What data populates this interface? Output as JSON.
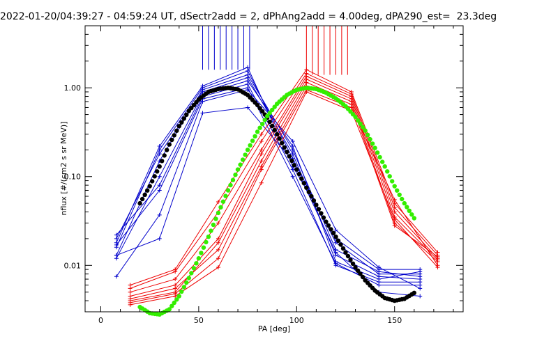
{
  "chart_data": {
    "type": "line",
    "title": "2022-01-20/04:39:27 - 04:59:24 UT, dSectr2add = 2, dPhAng2add = 4.00deg, dPA290_est=  23.3deg",
    "xlabel": "PA [deg]",
    "ylabel": "nflux [#/(cm2 s sr MeV)]",
    "xlim": [
      -8,
      185
    ],
    "ylim": [
      0.003,
      5.0
    ],
    "yscale": "log",
    "grid": false,
    "x_ticks": [
      0,
      50,
      100,
      150
    ],
    "x_tick_labels": [
      "0",
      "50",
      "100",
      "150"
    ],
    "y_ticks": [
      0.01,
      0.1,
      1.0
    ],
    "y_tick_labels": [
      "0.01",
      "0.10",
      "1.00"
    ],
    "colors": {
      "blue": "#0000cc",
      "red": "#ee0000",
      "black": "#000000",
      "green": "#33ee00"
    },
    "blue_series": [
      {
        "x": [
          8,
          30,
          52,
          75,
          98,
          120,
          142,
          163
        ],
        "y": [
          0.018,
          0.22,
          1.05,
          1.7,
          0.13,
          0.02,
          0.009,
          0.009
        ]
      },
      {
        "x": [
          8,
          30,
          52,
          75,
          98,
          120,
          142,
          163
        ],
        "y": [
          0.016,
          0.2,
          1.0,
          1.55,
          0.16,
          0.018,
          0.008,
          0.008
        ]
      },
      {
        "x": [
          8,
          30,
          52,
          75,
          98,
          120,
          142,
          163
        ],
        "y": [
          0.013,
          0.15,
          0.95,
          1.4,
          0.2,
          0.015,
          0.0085,
          0.0075
        ]
      },
      {
        "x": [
          8,
          30,
          52,
          75,
          98,
          120,
          142,
          163
        ],
        "y": [
          0.02,
          0.18,
          0.9,
          1.3,
          0.18,
          0.013,
          0.0075,
          0.007
        ]
      },
      {
        "x": [
          8,
          30,
          52,
          75,
          98,
          120,
          142,
          163
        ],
        "y": [
          0.012,
          0.1,
          0.85,
          1.2,
          0.22,
          0.011,
          0.007,
          0.0085
        ]
      },
      {
        "x": [
          8,
          30,
          52,
          75,
          98,
          120,
          142,
          163
        ],
        "y": [
          0.022,
          0.08,
          0.8,
          1.1,
          0.12,
          0.01,
          0.0065,
          0.0065
        ]
      },
      {
        "x": [
          8,
          30,
          52,
          75,
          98,
          120,
          142,
          163
        ],
        "y": [
          0.017,
          0.07,
          0.75,
          1.0,
          0.1,
          0.0105,
          0.006,
          0.006
        ]
      },
      {
        "x": [
          8,
          30,
          52,
          75,
          98,
          120,
          142,
          163
        ],
        "y": [
          0.0075,
          0.037,
          0.7,
          0.95,
          0.25,
          0.025,
          0.0095,
          0.0055
        ]
      },
      {
        "x": [
          8,
          30,
          52,
          75,
          98,
          120,
          142,
          163
        ],
        "y": [
          0.013,
          0.02,
          0.52,
          0.6,
          0.15,
          0.014,
          0.005,
          0.0045
        ]
      }
    ],
    "blue_spikes_x": [
      52,
      55,
      58,
      61,
      64,
      67,
      70,
      73,
      76
    ],
    "red_series": [
      {
        "x": [
          15,
          38,
          60,
          82,
          105,
          128,
          150,
          172
        ],
        "y": [
          0.006,
          0.009,
          0.052,
          0.3,
          1.6,
          0.9,
          0.05,
          0.014
        ]
      },
      {
        "x": [
          15,
          38,
          60,
          82,
          105,
          128,
          150,
          172
        ],
        "y": [
          0.0055,
          0.0085,
          0.04,
          0.25,
          1.45,
          0.85,
          0.045,
          0.013
        ]
      },
      {
        "x": [
          15,
          38,
          60,
          82,
          105,
          128,
          150,
          172
        ],
        "y": [
          0.005,
          0.007,
          0.03,
          0.2,
          1.35,
          0.8,
          0.04,
          0.012
        ]
      },
      {
        "x": [
          15,
          38,
          60,
          82,
          105,
          128,
          150,
          172
        ],
        "y": [
          0.0045,
          0.006,
          0.02,
          0.18,
          1.25,
          0.75,
          0.035,
          0.0115
        ]
      },
      {
        "x": [
          15,
          38,
          60,
          82,
          105,
          128,
          150,
          172
        ],
        "y": [
          0.004,
          0.005,
          0.018,
          0.15,
          1.15,
          0.7,
          0.03,
          0.011
        ]
      },
      {
        "x": [
          15,
          38,
          60,
          82,
          105,
          128,
          150,
          172
        ],
        "y": [
          0.0042,
          0.0055,
          0.015,
          0.13,
          1.05,
          0.65,
          0.028,
          0.0125
        ]
      },
      {
        "x": [
          15,
          38,
          60,
          82,
          105,
          128,
          150,
          172
        ],
        "y": [
          0.0038,
          0.0048,
          0.012,
          0.12,
          0.95,
          0.6,
          0.055,
          0.01
        ]
      },
      {
        "x": [
          15,
          38,
          60,
          82,
          105,
          128,
          150,
          172
        ],
        "y": [
          0.0036,
          0.0045,
          0.0095,
          0.085,
          0.9,
          0.55,
          0.033,
          0.0095
        ]
      }
    ],
    "red_spikes_x": [
      105,
      108,
      111,
      114,
      117,
      120,
      123,
      126
    ],
    "black_fit": {
      "x": [
        20,
        25,
        30,
        35,
        40,
        45,
        50,
        55,
        60,
        65,
        70,
        75,
        80,
        85,
        90,
        95,
        100,
        105,
        110,
        115,
        120,
        125,
        130,
        135,
        140,
        145,
        150,
        155,
        160
      ],
      "y": [
        0.05,
        0.078,
        0.13,
        0.23,
        0.37,
        0.55,
        0.74,
        0.9,
        0.97,
        1.0,
        0.96,
        0.83,
        0.64,
        0.46,
        0.3,
        0.19,
        0.12,
        0.075,
        0.048,
        0.031,
        0.021,
        0.014,
        0.0095,
        0.0068,
        0.0052,
        0.0043,
        0.004,
        0.0042,
        0.0049
      ]
    },
    "green_fit": {
      "x": [
        20,
        25,
        30,
        35,
        40,
        45,
        50,
        55,
        60,
        65,
        70,
        75,
        80,
        85,
        90,
        95,
        100,
        105,
        110,
        115,
        120,
        125,
        130,
        135,
        140,
        145,
        150,
        155,
        160
      ],
      "y": [
        0.0034,
        0.0029,
        0.0028,
        0.0032,
        0.0045,
        0.0072,
        0.012,
        0.021,
        0.039,
        0.07,
        0.12,
        0.2,
        0.32,
        0.48,
        0.66,
        0.83,
        0.95,
        1.0,
        0.97,
        0.88,
        0.76,
        0.62,
        0.47,
        0.33,
        0.21,
        0.13,
        0.078,
        0.05,
        0.034
      ]
    }
  }
}
